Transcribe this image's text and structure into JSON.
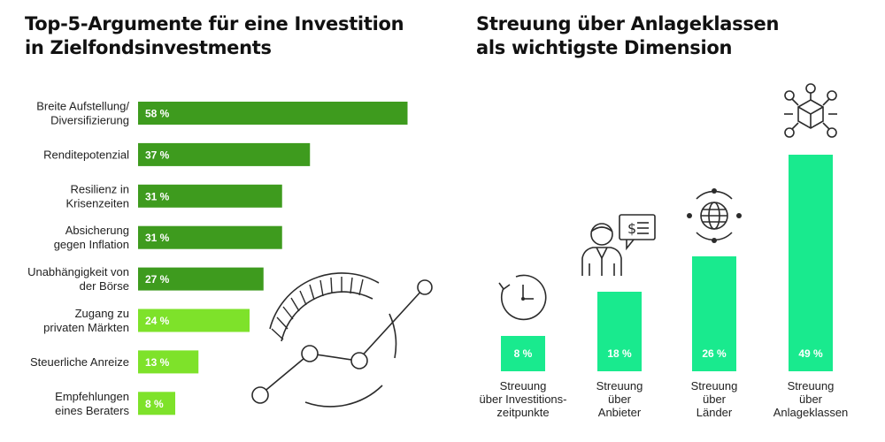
{
  "left_title": [
    "Top-5-Argumente für eine Investition",
    "in Zielfondsinvestments"
  ],
  "right_title": [
    "Streuung über Anlageklassen",
    "als wichtigste Dimension"
  ],
  "colors": {
    "dark_green": "#3e9b1e",
    "light_green": "#7ee22a",
    "mint": "#19ea8e"
  },
  "icons": [
    "clock-arrow-icon",
    "advisor-chat-icon",
    "globe-network-icon",
    "cube-network-icon",
    "chart-magnifier-icon"
  ],
  "chart_data": [
    {
      "type": "bar",
      "orientation": "horizontal",
      "categories": [
        [
          "Breite Aufstellung/",
          "Diversifizierung"
        ],
        [
          "Renditepotenzial"
        ],
        [
          "Resilienz in",
          "Krisenzeiten"
        ],
        [
          "Absicherung",
          "gegen Inflation"
        ],
        [
          "Unabhängigkeit von",
          "der Börse"
        ],
        [
          "Zugang zu",
          "privaten Märkten"
        ],
        [
          "Steuerliche Anreize"
        ],
        [
          "Empfehlungen",
          "eines Beraters"
        ]
      ],
      "values": [
        58,
        37,
        31,
        31,
        27,
        24,
        13,
        8
      ],
      "value_labels": [
        "58 %",
        "37 %",
        "31 %",
        "31 %",
        "27 %",
        "24 %",
        "13 %",
        "8 %"
      ],
      "highlight": [
        "dark",
        "dark",
        "dark",
        "dark",
        "dark",
        "light",
        "light",
        "light"
      ],
      "unit": "%"
    },
    {
      "type": "bar",
      "orientation": "vertical",
      "categories": [
        [
          "Streuung",
          "über Investitions-",
          "zeitpunkte"
        ],
        [
          "Streuung",
          "über",
          "Anbieter"
        ],
        [
          "Streuung",
          "über",
          "Länder"
        ],
        [
          "Streuung",
          "über",
          "Anlageklassen"
        ]
      ],
      "values": [
        8,
        18,
        26,
        49
      ],
      "value_labels": [
        "8 %",
        "18 %",
        "26 %",
        "49 %"
      ],
      "unit": "%"
    }
  ]
}
